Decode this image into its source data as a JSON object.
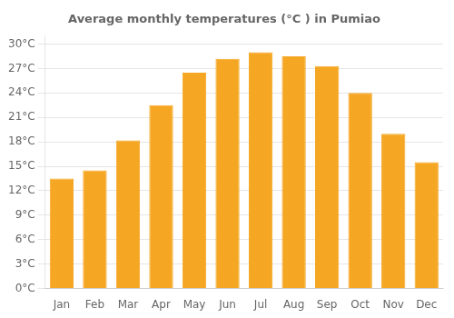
{
  "chart_data": {
    "type": "bar",
    "title": "Average monthly temperatures (°C ) in Pumiao",
    "categories": [
      "Jan",
      "Feb",
      "Mar",
      "Apr",
      "May",
      "Jun",
      "Jul",
      "Aug",
      "Sep",
      "Oct",
      "Nov",
      "Dec"
    ],
    "values": [
      13.5,
      14.5,
      18.2,
      22.5,
      26.5,
      28.2,
      29.0,
      28.5,
      27.3,
      24.0,
      19.0,
      15.5
    ],
    "color": "#F5A623",
    "ylim": [
      0,
      31
    ],
    "yticks": [
      {
        "value": 0,
        "label": "0°C"
      },
      {
        "value": 3,
        "label": "3°C"
      },
      {
        "value": 6,
        "label": "6°C"
      },
      {
        "value": 9,
        "label": "9°C"
      },
      {
        "value": 12,
        "label": "12°C"
      },
      {
        "value": 15,
        "label": "15°C"
      },
      {
        "value": 18,
        "label": "18°C"
      },
      {
        "value": 21,
        "label": "21°C"
      },
      {
        "value": 24,
        "label": "24°C"
      },
      {
        "value": 27,
        "label": "27°C"
      },
      {
        "value": 30,
        "label": "30°C"
      }
    ],
    "grid": true
  }
}
